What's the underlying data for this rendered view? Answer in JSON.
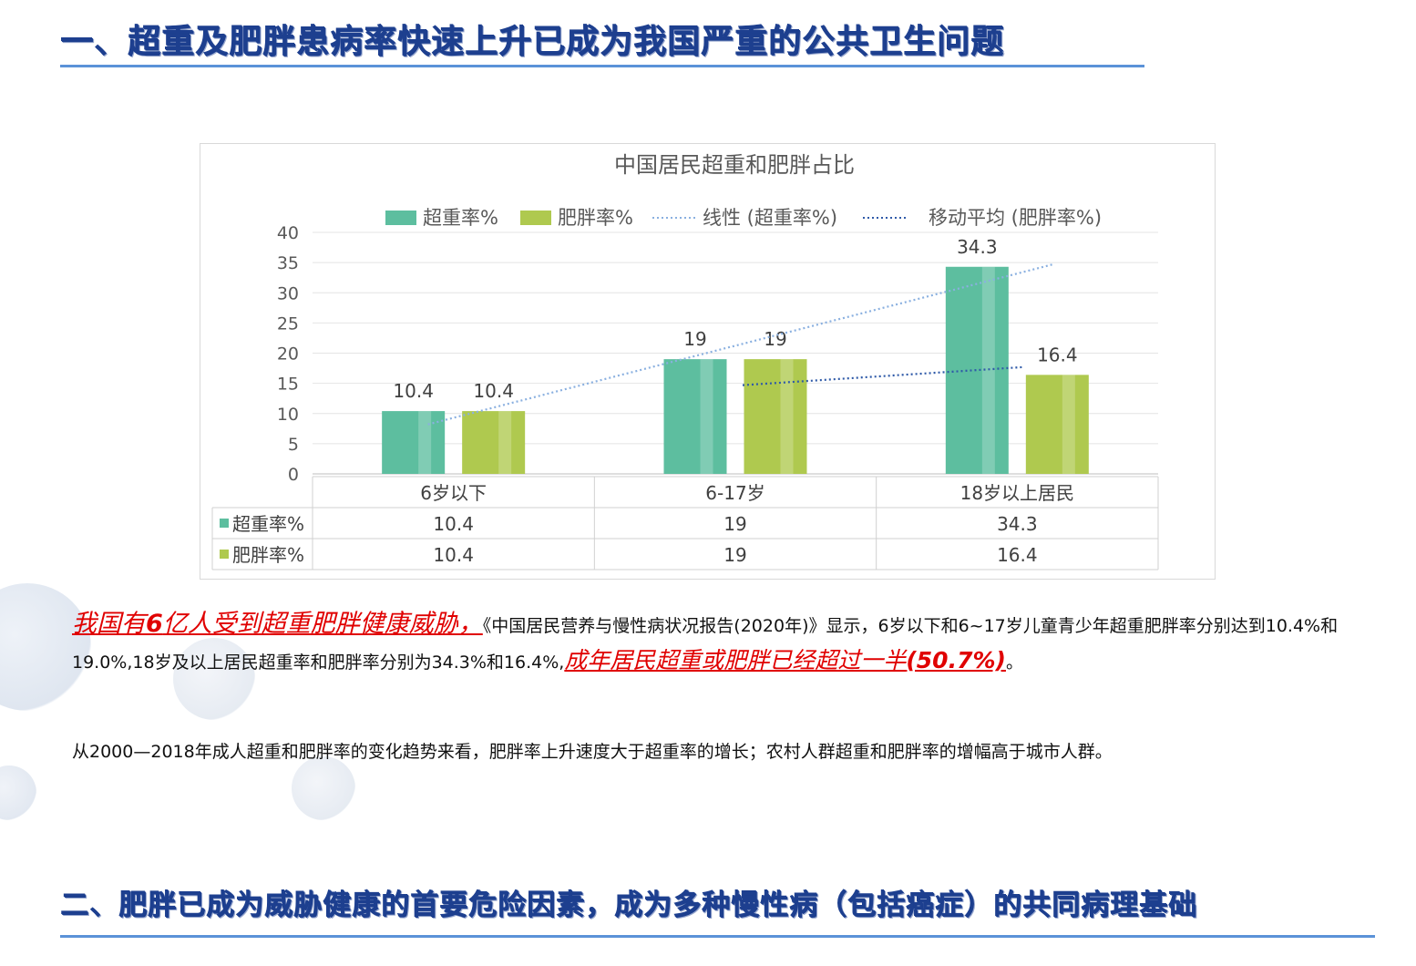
{
  "header": {
    "section1_title": "一、超重及肥胖患病率快速上升已成为我国严重的公共卫生问题",
    "section2_title": "二、肥胖已成为威胁健康的首要危险因素，成为多种慢性病（包括癌症）的共同病理基础"
  },
  "colors": {
    "heading": "#1d3f8f",
    "rule": "#5b92d8",
    "overweight": "#5dbe9f",
    "obesity": "#afc94f",
    "highlight": "#e00000"
  },
  "chart_data": {
    "type": "bar",
    "title": "中国居民超重和肥胖占比",
    "categories": [
      "6岁以下",
      "6-17岁",
      "18岁以上居民"
    ],
    "series": [
      {
        "name": "超重率%",
        "values": [
          10.4,
          19,
          34.3
        ]
      },
      {
        "name": "肥胖率%",
        "values": [
          10.4,
          19,
          16.4
        ]
      }
    ],
    "data_labels": {
      "overweight": [
        "10.4",
        "19",
        "34.3"
      ],
      "obesity": [
        "10.4",
        "19",
        "16.4"
      ]
    },
    "trendlines": [
      {
        "name": "线性 (超重率%)",
        "type": "linear",
        "series": "超重率%"
      },
      {
        "name": "移动平均 (肥胖率%)",
        "type": "moving-average",
        "series": "肥胖率%"
      }
    ],
    "legend": [
      "超重率%",
      "肥胖率%",
      "线性 (超重率%)",
      "移动平均 (肥胖率%)"
    ],
    "legend_position": "top",
    "ylim": [
      0,
      40
    ],
    "yticks": [
      "0",
      "5",
      "10",
      "15",
      "20",
      "25",
      "30",
      "35",
      "40"
    ],
    "grid": true,
    "data_table": true,
    "table": {
      "headers": [
        "6岁以下",
        "6-17岁",
        "18岁以上居民"
      ],
      "rows": [
        {
          "label": "超重率%",
          "values": [
            "10.4",
            "19",
            "34.3"
          ]
        },
        {
          "label": "肥胖率%",
          "values": [
            "10.4",
            "19",
            "16.4"
          ]
        }
      ]
    }
  },
  "para1": {
    "hl1_pre": "我国有",
    "hl1_num": "6",
    "hl1_post": "亿人受到超重肥胖健康威胁，",
    "text": "《中国居民营养与慢性病状况报告(2020年)》显示，6岁以下和6~17岁儿童青少年超重肥胖率分别达到10.4%和19.0%,18岁及以上居民超重率和肥胖率分别为34.3%和16.4%,",
    "hl2": "成年居民超重或肥胖已经超过一半",
    "hl2_pct": "(50.7%)",
    "end": "。"
  },
  "para2": {
    "text": "从2000—2018年成人超重和肥胖率的变化趋势来看，肥胖率上升速度大于超重率的增长；农村人群超重和肥胖率的增幅高于城市人群。"
  }
}
